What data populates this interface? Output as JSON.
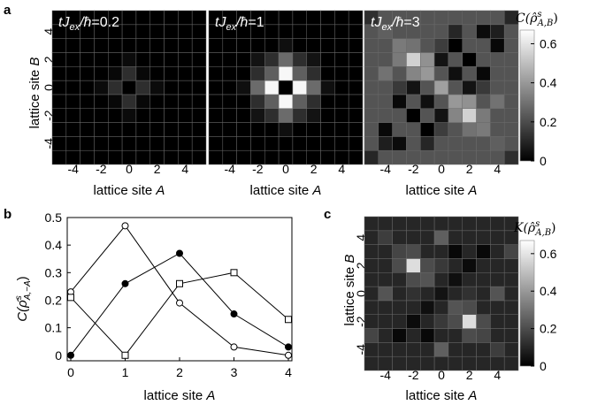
{
  "panels": {
    "a": {
      "letter": "a",
      "xlabel_prefix": "lattice site ",
      "xlabel_var": "A",
      "ylabel_prefix": "lattice site ",
      "ylabel_var": "B",
      "ticks": [
        "-4",
        "-2",
        "0",
        "2",
        "4"
      ],
      "colorbar": {
        "title_main": "C(",
        "title_rho": "ρ̂",
        "title_sup": "s",
        "title_sub": "A,B",
        "title_end": ")",
        "ticks": [
          "0",
          "0.2",
          "0.4",
          "0.6"
        ]
      },
      "maps": [
        {
          "t_label_prefix": "tJ",
          "t_label_sub": "ex",
          "t_label_mid": "/ħ",
          "t_value": "=0.2"
        },
        {
          "t_label_prefix": "tJ",
          "t_label_sub": "ex",
          "t_label_mid": "/ħ",
          "t_value": "=1"
        },
        {
          "t_label_prefix": "tJ",
          "t_label_sub": "ex",
          "t_label_mid": "/ħ",
          "t_value": "=3"
        }
      ]
    },
    "b": {
      "letter": "b",
      "xlabel_prefix": "lattice site ",
      "xlabel_var": "A",
      "ylabel_main": "C(",
      "ylabel_rho": "ρ̂",
      "ylabel_sup": "s",
      "ylabel_sub": "A,−A",
      "ylabel_end": ")",
      "xticks": [
        "0",
        "1",
        "2",
        "3",
        "4"
      ],
      "yticks": [
        "0",
        "0.1",
        "0.2",
        "0.3",
        "0.4",
        "0.5"
      ]
    },
    "c": {
      "letter": "c",
      "xlabel_prefix": "lattice site ",
      "xlabel_var": "A",
      "ylabel_prefix": "lattice site ",
      "ylabel_var": "B",
      "ticks": [
        "-4",
        "-2",
        "0",
        "2",
        "4"
      ],
      "colorbar": {
        "title_main": "K(",
        "title_rho": "ρ̂",
        "title_sup": "s",
        "title_sub": "A,B",
        "title_end": ")",
        "ticks": [
          "0",
          "0.2",
          "0.4",
          "0.6"
        ]
      }
    }
  },
  "chart_data": [
    {
      "type": "heatmap",
      "panel": "a1",
      "x": [
        -5,
        -4,
        -3,
        -2,
        -1,
        0,
        1,
        2,
        3,
        4,
        5
      ],
      "y": [
        -5,
        -4,
        -3,
        -2,
        -1,
        0,
        1,
        2,
        3,
        4,
        5
      ],
      "zlim": [
        0,
        0.67
      ],
      "cells": [
        [
          0,
          1,
          0.12
        ],
        [
          -1,
          0,
          0.12
        ],
        [
          1,
          0,
          0.12
        ],
        [
          0,
          -1,
          0.12
        ],
        [
          0,
          2,
          0.03
        ],
        [
          0,
          -2,
          0.03
        ],
        [
          2,
          0,
          0.03
        ],
        [
          -2,
          0,
          0.03
        ],
        [
          1,
          1,
          0.02
        ],
        [
          -1,
          1,
          0.02
        ],
        [
          1,
          -1,
          0.02
        ],
        [
          -1,
          -1,
          0.02
        ]
      ]
    },
    {
      "type": "heatmap",
      "panel": "a2",
      "x": [
        -5,
        -4,
        -3,
        -2,
        -1,
        0,
        1,
        2,
        3,
        4,
        5
      ],
      "y": [
        -5,
        -4,
        -3,
        -2,
        -1,
        0,
        1,
        2,
        3,
        4,
        5
      ],
      "zlim": [
        0,
        0.67
      ],
      "cells": [
        [
          0,
          1,
          0.65
        ],
        [
          -1,
          0,
          0.65
        ],
        [
          1,
          0,
          0.65
        ],
        [
          0,
          -1,
          0.65
        ],
        [
          -1,
          1,
          0.25
        ],
        [
          1,
          1,
          0.25
        ],
        [
          -1,
          -1,
          0.25
        ],
        [
          1,
          -1,
          0.25
        ],
        [
          0,
          2,
          0.28
        ],
        [
          0,
          -2,
          0.28
        ],
        [
          2,
          0,
          0.28
        ],
        [
          -2,
          0,
          0.28
        ],
        [
          1,
          2,
          0.12
        ],
        [
          -1,
          2,
          0.12
        ],
        [
          2,
          1,
          0.12
        ],
        [
          2,
          -1,
          0.12
        ],
        [
          -2,
          1,
          0.12
        ],
        [
          -2,
          -1,
          0.12
        ],
        [
          1,
          -2,
          0.12
        ],
        [
          -1,
          -2,
          0.12
        ],
        [
          2,
          2,
          0.05
        ],
        [
          -2,
          2,
          0.05
        ],
        [
          2,
          -2,
          0.05
        ],
        [
          -2,
          -2,
          0.05
        ],
        [
          0,
          3,
          0.04
        ],
        [
          0,
          -3,
          0.04
        ],
        [
          3,
          0,
          0.04
        ],
        [
          -3,
          0,
          0.04
        ]
      ]
    },
    {
      "type": "heatmap",
      "panel": "a3",
      "x": [
        -5,
        -4,
        -3,
        -2,
        -1,
        0,
        1,
        2,
        3,
        4,
        5
      ],
      "y": [
        -5,
        -4,
        -3,
        -2,
        -1,
        0,
        1,
        2,
        3,
        4,
        5
      ],
      "zlim": [
        0,
        0.67
      ],
      "base": 0.22,
      "cells": [
        [
          -2,
          2,
          0.55
        ],
        [
          2,
          -2,
          0.55
        ],
        [
          -1,
          2,
          0.38
        ],
        [
          -3,
          2,
          0.32
        ],
        [
          -2,
          3,
          0.3
        ],
        [
          -2,
          1,
          0.35
        ],
        [
          2,
          -1,
          0.38
        ],
        [
          3,
          -2,
          0.32
        ],
        [
          2,
          -3,
          0.3
        ],
        [
          1,
          -2,
          0.35
        ],
        [
          -1,
          1,
          0.4
        ],
        [
          1,
          -1,
          0.4
        ],
        [
          0,
          0,
          0.42
        ],
        [
          -3,
          3,
          0.32
        ],
        [
          3,
          -3,
          0.32
        ],
        [
          -4,
          4,
          0.25
        ],
        [
          4,
          -4,
          0.25
        ],
        [
          1,
          3,
          0.0
        ],
        [
          2,
          2,
          0.0
        ],
        [
          3,
          1,
          0.02
        ],
        [
          0,
          2,
          0.05
        ],
        [
          2,
          0,
          0.05
        ],
        [
          1,
          1,
          0.04
        ],
        [
          4,
          3,
          0.02
        ],
        [
          3,
          4,
          0.03
        ],
        [
          4,
          4,
          0.08
        ],
        [
          -4,
          -4,
          0.08
        ],
        [
          -3,
          -4,
          0.03
        ],
        [
          -4,
          -3,
          0.02
        ],
        [
          -1,
          -3,
          0.0
        ],
        [
          -2,
          -2,
          0.0
        ],
        [
          -3,
          -1,
          0.02
        ],
        [
          0,
          -2,
          0.05
        ],
        [
          -2,
          0,
          0.05
        ],
        [
          -1,
          -1,
          0.04
        ],
        [
          -5,
          5,
          0.12
        ],
        [
          5,
          -5,
          0.12
        ],
        [
          -5,
          -5,
          0.1
        ],
        [
          5,
          5,
          0.1
        ],
        [
          4,
          -1,
          0.3
        ],
        [
          -4,
          1,
          0.3
        ],
        [
          1,
          4,
          0.1
        ],
        [
          -1,
          -4,
          0.1
        ],
        [
          3,
          0,
          0.15
        ],
        [
          -3,
          0,
          0.15
        ],
        [
          0,
          3,
          0.16
        ],
        [
          0,
          -3,
          0.16
        ]
      ]
    },
    {
      "type": "line",
      "panel": "b",
      "x": [
        0,
        1,
        2,
        3,
        4
      ],
      "xlim": [
        0,
        4
      ],
      "ylim": [
        -0.02,
        0.5
      ],
      "series": [
        {
          "marker": "open-circle",
          "values": [
            0.23,
            0.47,
            0.19,
            0.03,
            0.0
          ]
        },
        {
          "marker": "filled-circle",
          "values": [
            0.0,
            0.26,
            0.37,
            0.15,
            0.03
          ]
        },
        {
          "marker": "open-square",
          "values": [
            0.21,
            0.0,
            0.26,
            0.3,
            0.13
          ]
        }
      ]
    },
    {
      "type": "heatmap",
      "panel": "c",
      "x": [
        -5,
        -4,
        -3,
        -2,
        -1,
        0,
        1,
        2,
        3,
        4,
        5
      ],
      "y": [
        -5,
        -4,
        -3,
        -2,
        -1,
        0,
        1,
        2,
        3,
        4,
        5
      ],
      "zlim": [
        0,
        0.67
      ],
      "base": 0.1,
      "cells": [
        [
          -2,
          2,
          0.58
        ],
        [
          2,
          -2,
          0.58
        ],
        [
          -1,
          2,
          0.2
        ],
        [
          -3,
          2,
          0.2
        ],
        [
          -2,
          3,
          0.2
        ],
        [
          -2,
          1,
          0.2
        ],
        [
          2,
          -1,
          0.2
        ],
        [
          3,
          -2,
          0.2
        ],
        [
          2,
          -3,
          0.2
        ],
        [
          1,
          -2,
          0.2
        ],
        [
          -1,
          1,
          0.22
        ],
        [
          1,
          -1,
          0.22
        ],
        [
          -3,
          3,
          0.18
        ],
        [
          3,
          -3,
          0.18
        ],
        [
          0,
          0,
          0.05
        ],
        [
          1,
          1,
          0.04
        ],
        [
          -1,
          -1,
          0.04
        ],
        [
          2,
          2,
          0.03
        ],
        [
          -2,
          -2,
          0.03
        ],
        [
          0,
          4,
          0.25
        ],
        [
          4,
          0,
          0.22
        ],
        [
          0,
          -4,
          0.25
        ],
        [
          -4,
          0,
          0.22
        ],
        [
          -4,
          4,
          0.16
        ],
        [
          4,
          -4,
          0.16
        ],
        [
          3,
          3,
          0.02
        ],
        [
          -3,
          -3,
          0.02
        ],
        [
          -5,
          -3,
          0.18
        ],
        [
          5,
          3,
          0.18
        ],
        [
          -1,
          -3,
          0.02
        ],
        [
          1,
          3,
          0.02
        ],
        [
          0,
          -2,
          0.15
        ],
        [
          0,
          2,
          0.15
        ],
        [
          2,
          0,
          0.13
        ],
        [
          -2,
          0,
          0.13
        ]
      ]
    }
  ]
}
